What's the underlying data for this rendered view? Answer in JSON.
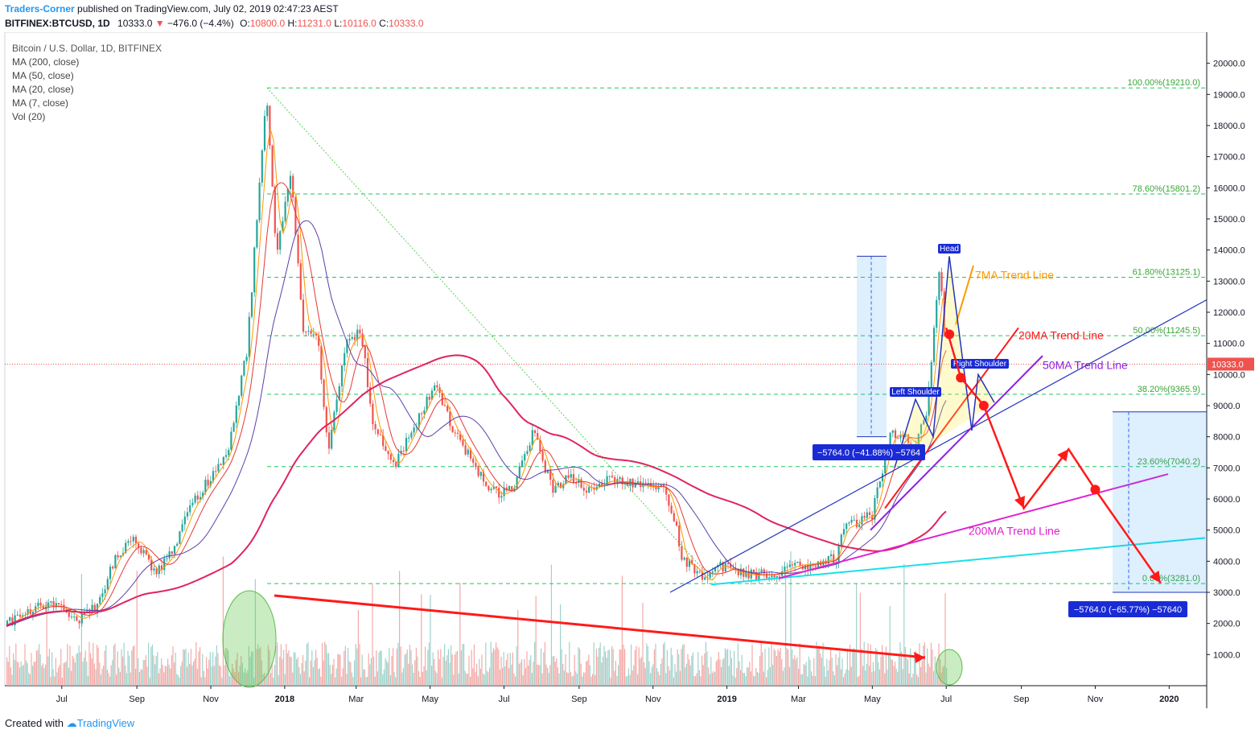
{
  "header": {
    "publisher": "Traders-Corner",
    "published_text": " published on TradingView.com, July 02, 2019 02:47:23 AEST",
    "symbol": "BITFINEX:BTCUSD, 1D",
    "last": "10333.0",
    "change": "−476.0 (−4.4%)",
    "ohlc": {
      "o": "10800.0",
      "h": "11231.0",
      "l": "10116.0",
      "c": "10333.0"
    }
  },
  "legend": {
    "title": "Bitcoin / U.S. Dollar, 1D, BITFINEX",
    "items": [
      "MA (200, close)",
      "MA (50, close)",
      "MA (20, close)",
      "MA (7, close)",
      "Vol (20)"
    ]
  },
  "footer": {
    "created_with": "Created with",
    "brand": "TradingView"
  },
  "colors": {
    "up": "#26a69a",
    "down": "#ef5350",
    "ma200": "#e0245e",
    "ma50": "#5b3fa8",
    "ma20": "#e53935",
    "ma7": "#ff9800",
    "fib": "#22c55e",
    "accent": "#2962ff"
  },
  "chart_data": {
    "type": "line",
    "title": "Bitcoin / U.S. Dollar, 1D, BITFINEX",
    "y_ticks": [
      1000,
      2000,
      3000,
      4000,
      5000,
      6000,
      7000,
      8000,
      9000,
      10000,
      11000,
      12000,
      13000,
      14000,
      15000,
      16000,
      17000,
      18000,
      19000,
      20000
    ],
    "ylim": [
      0,
      21000
    ],
    "x_ticks": [
      {
        "label": "Jul",
        "date": "2017-07-01"
      },
      {
        "label": "Sep",
        "date": "2017-09-01"
      },
      {
        "label": "Nov",
        "date": "2017-11-01"
      },
      {
        "label": "2018",
        "date": "2018-01-01"
      },
      {
        "label": "Mar",
        "date": "2018-03-01"
      },
      {
        "label": "May",
        "date": "2018-05-01"
      },
      {
        "label": "Jul",
        "date": "2018-07-01"
      },
      {
        "label": "Sep",
        "date": "2018-09-01"
      },
      {
        "label": "Nov",
        "date": "2018-11-01"
      },
      {
        "label": "2019",
        "date": "2019-01-01"
      },
      {
        "label": "Mar",
        "date": "2019-03-01"
      },
      {
        "label": "May",
        "date": "2019-05-01"
      },
      {
        "label": "Jul",
        "date": "2019-07-01"
      },
      {
        "label": "Sep",
        "date": "2019-09-01"
      },
      {
        "label": "Nov",
        "date": "2019-11-01"
      },
      {
        "label": "2020",
        "date": "2020-01-01"
      }
    ],
    "xlim": [
      "2017-05-15",
      "2020-02-01"
    ],
    "last_price": {
      "value": 10333,
      "label": "10333.0"
    },
    "price": {
      "dates": [
        "2017-05-15",
        "2017-06-01",
        "2017-06-15",
        "2017-07-01",
        "2017-07-16",
        "2017-08-01",
        "2017-08-15",
        "2017-09-01",
        "2017-09-15",
        "2017-10-01",
        "2017-10-15",
        "2017-11-01",
        "2017-11-15",
        "2017-12-01",
        "2017-12-10",
        "2017-12-17",
        "2017-12-25",
        "2018-01-06",
        "2018-01-16",
        "2018-01-28",
        "2018-02-06",
        "2018-02-20",
        "2018-03-05",
        "2018-03-15",
        "2018-04-01",
        "2018-04-15",
        "2018-05-05",
        "2018-05-20",
        "2018-06-01",
        "2018-06-15",
        "2018-06-28",
        "2018-07-10",
        "2018-07-25",
        "2018-08-10",
        "2018-08-25",
        "2018-09-10",
        "2018-09-25",
        "2018-10-10",
        "2018-10-25",
        "2018-11-10",
        "2018-11-20",
        "2018-11-25",
        "2018-12-05",
        "2018-12-15",
        "2018-12-25",
        "2019-01-10",
        "2019-01-25",
        "2019-02-10",
        "2019-02-25",
        "2019-03-15",
        "2019-04-01",
        "2019-04-05",
        "2019-04-20",
        "2019-05-01",
        "2019-05-15",
        "2019-05-25",
        "2019-06-05",
        "2019-06-15",
        "2019-06-26",
        "2019-07-01"
      ],
      "values": [
        1900,
        2400,
        2600,
        2500,
        2100,
        2700,
        4200,
        4700,
        3600,
        4300,
        5700,
        6700,
        7500,
        10800,
        15500,
        19000,
        13900,
        16500,
        11500,
        11200,
        7500,
        10900,
        11400,
        8400,
        7000,
        8100,
        9700,
        8200,
        7500,
        6500,
        6100,
        6500,
        8200,
        6300,
        6700,
        6300,
        6600,
        6500,
        6400,
        6400,
        5200,
        4000,
        3800,
        3300,
        3900,
        3600,
        3550,
        3600,
        3850,
        3950,
        4100,
        5000,
        5300,
        5500,
        8000,
        8100,
        7700,
        8800,
        13500,
        10333
      ]
    },
    "fibonacci": [
      {
        "label": "100.00%(19210.0)",
        "value": 19210.0
      },
      {
        "label": "78.60%(15801.2)",
        "value": 15801.2
      },
      {
        "label": "61.80%(13125.1)",
        "value": 13125.1
      },
      {
        "label": "50.00%(11245.5)",
        "value": 11245.5
      },
      {
        "label": "38.20%(9365.9)",
        "value": 9365.9
      },
      {
        "label": "23.60%(7040.2)",
        "value": 7040.2
      },
      {
        "label": "0.00%(3281.0)",
        "value": 3281.0
      }
    ],
    "annotations": {
      "ma7_trend": "7MA Trend Line",
      "ma20_trend": "20MA Trend Line",
      "ma50_trend": "50MA Trend Line",
      "ma200_trend": "200MA Trend Line",
      "head": "Head",
      "left_shoulder": "Left Shoulder",
      "right_shoulder": "Right Shoulder",
      "measure1": "−5764.0 (−41.88%) −5764",
      "measure2": "−5764.0 (−65.77%) −57640"
    },
    "projection": {
      "dates": [
        "2019-07-01",
        "2019-07-13",
        "2019-08-01",
        "2019-09-03",
        "2019-10-10",
        "2019-11-01",
        "2019-12-25"
      ],
      "values": [
        11500,
        9900,
        9000,
        5700,
        7600,
        6300,
        3300
      ]
    }
  }
}
